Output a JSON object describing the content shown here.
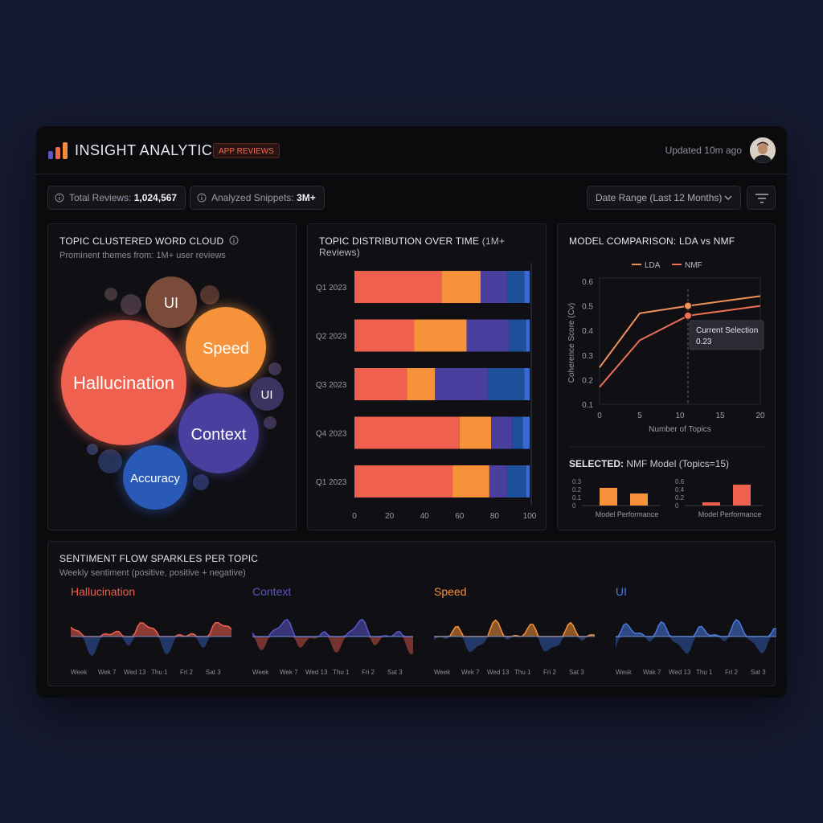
{
  "header": {
    "app_title": "INSIGHT ANALYTICS",
    "badge": "APP REVIEWS",
    "updated": "Updated 10m ago",
    "logo_colors": [
      "#5b57c6",
      "#e86a4a",
      "#f08c3a"
    ]
  },
  "toolbar": {
    "total_label": "Total Reviews: ",
    "total_value": "1,024,567",
    "snippets_label": "Analyzed Snippets: ",
    "snippets_value": "3M+",
    "date_range": "Date Range (Last 12 Months)"
  },
  "word_cloud": {
    "title": "TOPIC CLUSTERED WORD CLOUD",
    "subtitle": "Prominent themes from: 1M+ user reviews",
    "bubbles": [
      {
        "label": "Hallucination",
        "color": "#f0604e",
        "size": "large"
      },
      {
        "label": "Speed",
        "color": "#f5923a",
        "size": "medium"
      },
      {
        "label": "Context",
        "color": "#4a3f9e",
        "size": "medium"
      },
      {
        "label": "Accuracy",
        "color": "#2a5ab8",
        "size": "small"
      },
      {
        "label": "UI",
        "color": "#7a4a3a",
        "size": "small"
      },
      {
        "label": "UI",
        "color": "#3a3560",
        "size": "tiny"
      }
    ]
  },
  "distribution": {
    "title": "TOPIC DISTRIBUTION OVER TIME",
    "title_suffix": " (1M+ Reviews)",
    "chart_data": {
      "type": "bar",
      "orientation": "horizontal-stacked",
      "categories": [
        "Q1 2023",
        "Q2 2023",
        "Q3 2023",
        "Q4 2023",
        "Q1 2023"
      ],
      "series": [
        {
          "color": "#f0604e",
          "values": [
            50,
            34,
            30,
            60,
            56
          ]
        },
        {
          "color": "#f5923a",
          "values": [
            22,
            30,
            16,
            18,
            21
          ]
        },
        {
          "color": "#4a3f9e",
          "values": [
            15,
            24,
            30,
            12,
            10
          ]
        },
        {
          "color": "#1e4f9a",
          "values": [
            10,
            10,
            21,
            6,
            11
          ]
        },
        {
          "color": "#3a6ad0",
          "values": [
            3,
            2,
            3,
            4,
            2
          ]
        }
      ],
      "xticks": [
        "0",
        "20",
        "40",
        "60",
        "80",
        "100"
      ],
      "xlim": [
        0,
        100
      ]
    }
  },
  "model_comparison": {
    "title": "MODEL COMPARISON: LDA vs NMF",
    "chart_data": {
      "type": "line",
      "x": [
        0,
        5,
        11,
        20
      ],
      "series": [
        {
          "name": "LDA",
          "color": "#f0935a",
          "values": [
            0.25,
            0.47,
            0.5,
            0.54
          ]
        },
        {
          "name": "NMF",
          "color": "#f07056",
          "values": [
            0.17,
            0.36,
            0.46,
            0.5
          ]
        }
      ],
      "xlabel": "Number of Topics",
      "ylabel": "Coherence Score (Cv)",
      "xlim": [
        0,
        20
      ],
      "ylim": [
        0.1,
        0.6
      ],
      "xticks": [
        "0",
        "5",
        "10",
        "15",
        "20"
      ],
      "yticks": [
        "0.1",
        "0.2",
        "0.3",
        "0.4",
        "0.5",
        "0.6"
      ],
      "tooltip_title": "Current Selection",
      "tooltip_value": "0.23"
    },
    "selected_label": "SELECTED: ",
    "selected_value": "NMF Model (Topics=15)",
    "mini_charts": [
      {
        "label": "Model Performance",
        "yticks": [
          "0.3",
          "0.2",
          "0.1",
          "0"
        ],
        "values": [
          0.22,
          0.15
        ],
        "color": "#f5923a",
        "ymax": 0.3
      },
      {
        "label": "Model Performance",
        "yticks": [
          "0.6",
          "0.4",
          "0.2",
          "0"
        ],
        "values": [
          0.08,
          0.52
        ],
        "color": "#f0604e",
        "ymax": 0.6
      }
    ]
  },
  "sentiment": {
    "title": "SENTIMENT FLOW SPARKLES PER TOPIC",
    "subtitle": "Weekly sentiment (positive, positive  + negative)",
    "topics": [
      {
        "name": "Hallucination",
        "color": "#f0604e",
        "labels": [
          "Week",
          "Wek 7",
          "Wed 13",
          "Thu 1",
          "Fri 2",
          "Sat 3"
        ]
      },
      {
        "name": "Context",
        "color": "#5a55c8",
        "labels": [
          "Week",
          "Wek 7",
          "Wed 13",
          "Thu 1",
          "Fri 2",
          "Sat 3"
        ]
      },
      {
        "name": "Speed",
        "color": "#f5923a",
        "labels": [
          "Week",
          "Wek 7",
          "Wed 13",
          "Thu 1",
          "Fri 2",
          "Sat 3"
        ]
      },
      {
        "name": "UI",
        "color": "#4a7ae0",
        "labels": [
          "Wesk",
          "Wak 7",
          "Wed 13",
          "Thu 1",
          "Fri 2",
          "Sat 3"
        ]
      }
    ]
  }
}
